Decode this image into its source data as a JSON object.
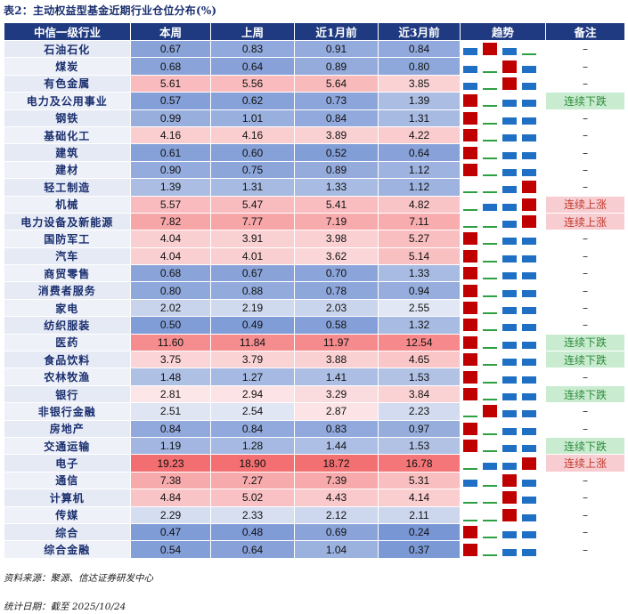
{
  "title": "表2：主动权益型基金近期行业仓位分布(%)",
  "headers": [
    "中信一级行业",
    "本周",
    "上周",
    "近1月前",
    "近3月前",
    "趋势",
    "备注"
  ],
  "rows": [
    {
      "industry": "石油石化",
      "v": [
        "0.67",
        "0.83",
        "0.91",
        "0.84"
      ],
      "trend": [
        "blue",
        "red",
        "blue",
        "green"
      ],
      "note": "–"
    },
    {
      "industry": "煤炭",
      "v": [
        "0.68",
        "0.64",
        "0.89",
        "0.80"
      ],
      "trend": [
        "blue",
        "green",
        "red",
        "blue"
      ],
      "note": "–"
    },
    {
      "industry": "有色金属",
      "v": [
        "5.61",
        "5.56",
        "5.64",
        "3.85"
      ],
      "trend": [
        "blue",
        "green",
        "red",
        "blue"
      ],
      "note": "–"
    },
    {
      "industry": "电力及公用事业",
      "v": [
        "0.57",
        "0.62",
        "0.73",
        "1.39"
      ],
      "trend": [
        "red",
        "green",
        "blue",
        "blue"
      ],
      "note": "连续下跌"
    },
    {
      "industry": "钢铁",
      "v": [
        "0.99",
        "1.01",
        "0.84",
        "1.31"
      ],
      "trend": [
        "red",
        "green",
        "blue",
        "blue"
      ],
      "note": "–"
    },
    {
      "industry": "基础化工",
      "v": [
        "4.16",
        "4.16",
        "3.89",
        "4.22"
      ],
      "trend": [
        "red",
        "green",
        "blue",
        "blue"
      ],
      "note": "–"
    },
    {
      "industry": "建筑",
      "v": [
        "0.61",
        "0.60",
        "0.52",
        "0.64"
      ],
      "trend": [
        "red",
        "green",
        "blue",
        "blue"
      ],
      "note": "–"
    },
    {
      "industry": "建材",
      "v": [
        "0.90",
        "0.75",
        "0.89",
        "1.12"
      ],
      "trend": [
        "red",
        "green",
        "blue",
        "blue"
      ],
      "note": "–"
    },
    {
      "industry": "轻工制造",
      "v": [
        "1.39",
        "1.31",
        "1.33",
        "1.12"
      ],
      "trend": [
        "green",
        "green",
        "blue",
        "red"
      ],
      "note": "–"
    },
    {
      "industry": "机械",
      "v": [
        "5.57",
        "5.47",
        "5.41",
        "4.82"
      ],
      "trend": [
        "green",
        "blue",
        "blue",
        "red"
      ],
      "note": "连续上涨"
    },
    {
      "industry": "电力设备及新能源",
      "v": [
        "7.82",
        "7.77",
        "7.19",
        "7.11"
      ],
      "trend": [
        "green",
        "green",
        "blue",
        "red"
      ],
      "note": "连续上涨"
    },
    {
      "industry": "国防军工",
      "v": [
        "4.04",
        "3.91",
        "3.98",
        "5.27"
      ],
      "trend": [
        "red",
        "green",
        "blue",
        "blue"
      ],
      "note": "–"
    },
    {
      "industry": "汽车",
      "v": [
        "4.04",
        "4.01",
        "3.62",
        "5.14"
      ],
      "trend": [
        "red",
        "green",
        "blue",
        "blue"
      ],
      "note": "–"
    },
    {
      "industry": "商贸零售",
      "v": [
        "0.68",
        "0.67",
        "0.70",
        "1.33"
      ],
      "trend": [
        "red",
        "green",
        "blue",
        "blue"
      ],
      "note": "–"
    },
    {
      "industry": "消费者服务",
      "v": [
        "0.80",
        "0.88",
        "0.78",
        "0.94"
      ],
      "trend": [
        "red",
        "green",
        "blue",
        "blue"
      ],
      "note": "–"
    },
    {
      "industry": "家电",
      "v": [
        "2.02",
        "2.19",
        "2.03",
        "2.55"
      ],
      "trend": [
        "red",
        "green",
        "blue",
        "blue"
      ],
      "note": "–"
    },
    {
      "industry": "纺织服装",
      "v": [
        "0.50",
        "0.49",
        "0.58",
        "1.32"
      ],
      "trend": [
        "red",
        "green",
        "blue",
        "blue"
      ],
      "note": "–"
    },
    {
      "industry": "医药",
      "v": [
        "11.60",
        "11.84",
        "11.97",
        "12.54"
      ],
      "trend": [
        "red",
        "green",
        "blue",
        "blue"
      ],
      "note": "连续下跌"
    },
    {
      "industry": "食品饮料",
      "v": [
        "3.75",
        "3.79",
        "3.88",
        "4.65"
      ],
      "trend": [
        "red",
        "green",
        "blue",
        "blue"
      ],
      "note": "连续下跌"
    },
    {
      "industry": "农林牧渔",
      "v": [
        "1.48",
        "1.27",
        "1.41",
        "1.53"
      ],
      "trend": [
        "red",
        "green",
        "blue",
        "blue"
      ],
      "note": "–"
    },
    {
      "industry": "银行",
      "v": [
        "2.81",
        "2.94",
        "3.29",
        "3.84"
      ],
      "trend": [
        "red",
        "green",
        "blue",
        "blue"
      ],
      "note": "连续下跌"
    },
    {
      "industry": "非银行金融",
      "v": [
        "2.51",
        "2.54",
        "2.87",
        "2.23"
      ],
      "trend": [
        "green",
        "red",
        "blue",
        "blue"
      ],
      "note": "–"
    },
    {
      "industry": "房地产",
      "v": [
        "0.84",
        "0.84",
        "0.83",
        "0.97"
      ],
      "trend": [
        "red",
        "green",
        "blue",
        "blue"
      ],
      "note": "–"
    },
    {
      "industry": "交通运输",
      "v": [
        "1.19",
        "1.28",
        "1.44",
        "1.53"
      ],
      "trend": [
        "red",
        "green",
        "blue",
        "blue"
      ],
      "note": "连续下跌"
    },
    {
      "industry": "电子",
      "v": [
        "19.23",
        "18.90",
        "18.72",
        "16.78"
      ],
      "trend": [
        "green",
        "blue",
        "blue",
        "red"
      ],
      "note": "连续上涨"
    },
    {
      "industry": "通信",
      "v": [
        "7.38",
        "7.27",
        "7.39",
        "5.31"
      ],
      "trend": [
        "blue",
        "green",
        "red",
        "blue"
      ],
      "note": "–"
    },
    {
      "industry": "计算机",
      "v": [
        "4.84",
        "5.02",
        "4.43",
        "4.14"
      ],
      "trend": [
        "green",
        "green",
        "red",
        "blue"
      ],
      "note": "–"
    },
    {
      "industry": "传媒",
      "v": [
        "2.29",
        "2.33",
        "2.12",
        "2.11"
      ],
      "trend": [
        "green",
        "green",
        "red",
        "blue"
      ],
      "note": "–"
    },
    {
      "industry": "综合",
      "v": [
        "0.47",
        "0.48",
        "0.69",
        "0.24"
      ],
      "trend": [
        "red",
        "green",
        "blue",
        "blue"
      ],
      "note": "–"
    },
    {
      "industry": "综合金融",
      "v": [
        "0.54",
        "0.64",
        "1.04",
        "0.37"
      ],
      "trend": [
        "red",
        "green",
        "blue",
        "blue"
      ],
      "note": "–"
    }
  ],
  "footer": {
    "source": "资料来源：聚源、信达证券研发中心",
    "date": "统计日期：截至 2025/10/24"
  },
  "colors": {
    "header": "#1f3a80",
    "up": "#c00000",
    "mid": "#1f6fc5",
    "down": "#2ea043"
  }
}
